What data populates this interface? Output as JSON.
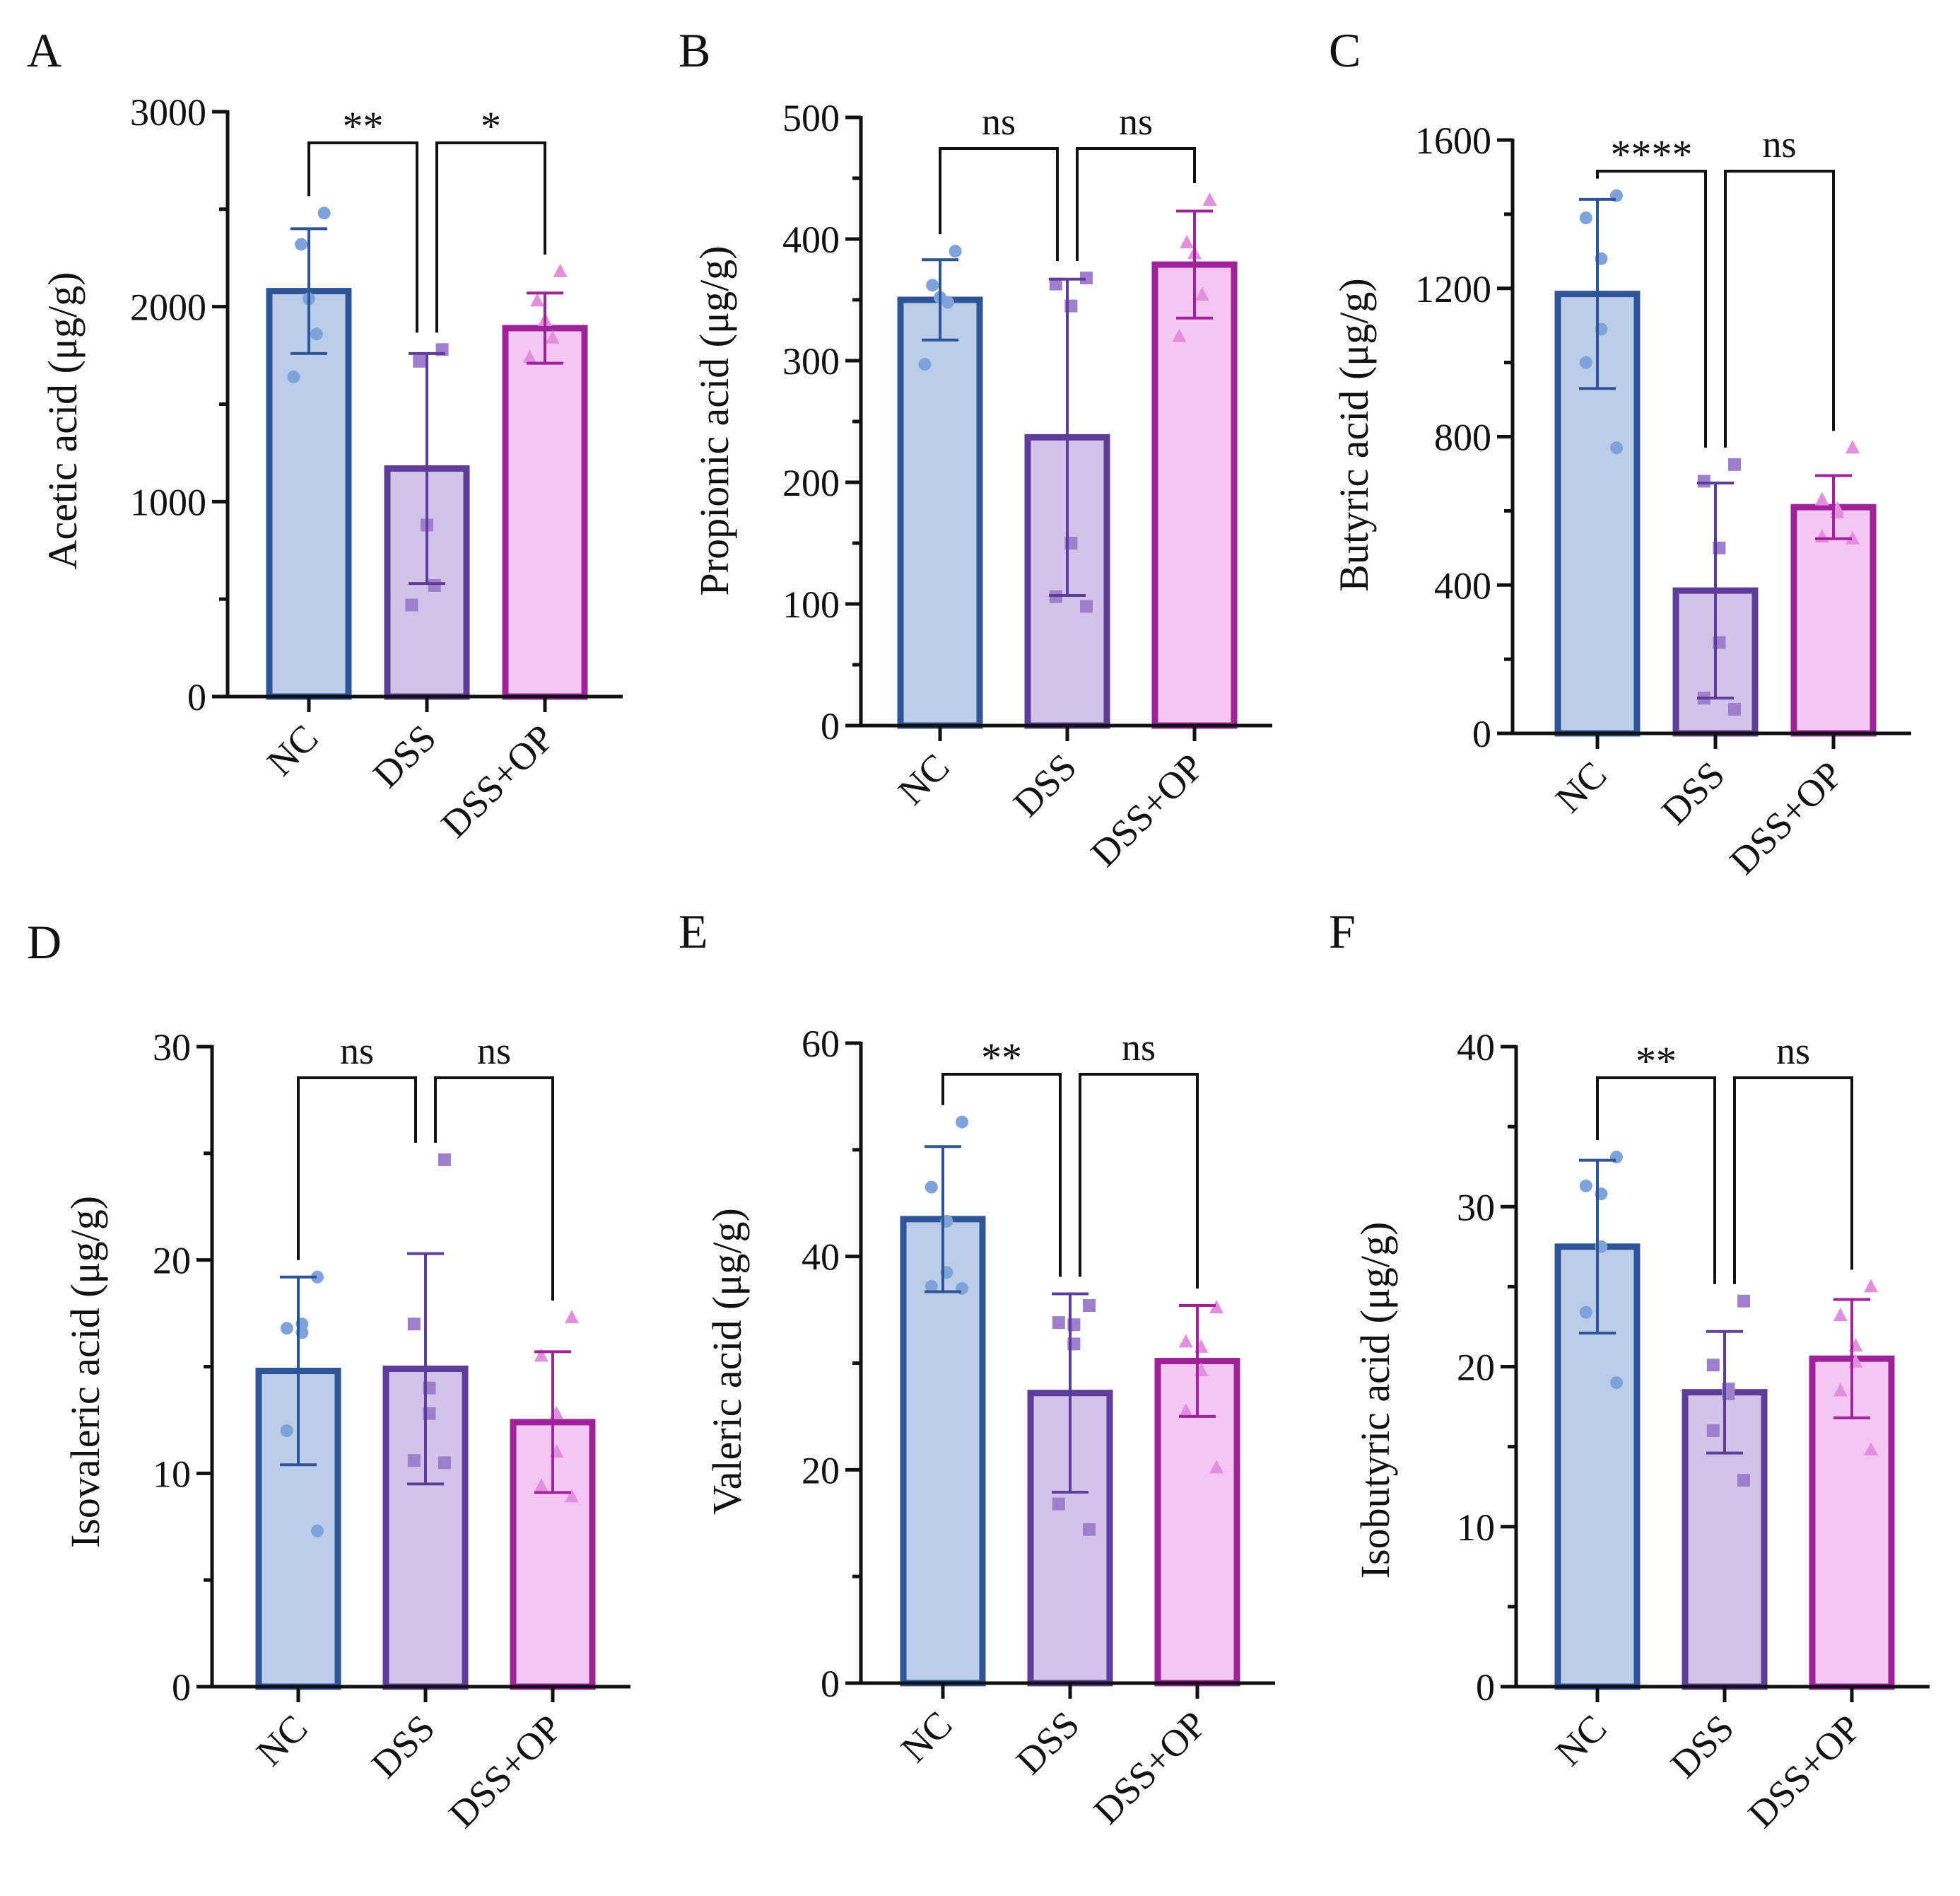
{
  "colors": {
    "nc_fill": "#bccde9",
    "nc_stroke": "#2e5597",
    "nc_point": "#7ea3db",
    "dss_fill": "#d2c4e8",
    "dss_stroke": "#5e3c9a",
    "dss_point": "#9d7fce",
    "op_fill": "#f4c6f1",
    "op_stroke": "#a0229a",
    "op_point": "#e48ee0",
    "axis": "#111111"
  },
  "chart_data": [
    {
      "panel": "A",
      "type": "bar",
      "ylabel": "Acetic acid (μg/g)",
      "ylim": [
        0,
        3000
      ],
      "ticks": [
        "0",
        "1000",
        "2000",
        "3000"
      ],
      "tick_values": [
        0,
        1000,
        2000,
        3000
      ],
      "categories": [
        "NC",
        "DSS",
        "DSS+OP"
      ],
      "values": [
        2080,
        1170,
        1890
      ],
      "errors": [
        320,
        590,
        180
      ],
      "points": [
        [
          2480,
          2320,
          2040,
          1860,
          1640
        ],
        [
          1780,
          1720,
          880,
          570,
          470
        ],
        [
          2180,
          2030,
          1930,
          1840,
          1740
        ]
      ],
      "significance": [
        "**",
        "*"
      ]
    },
    {
      "panel": "B",
      "type": "bar",
      "ylabel": "Propionic acid (μg/g)",
      "ylim": [
        0,
        500
      ],
      "ticks": [
        "0",
        "100",
        "200",
        "300",
        "400",
        "500"
      ],
      "tick_values": [
        0,
        100,
        200,
        300,
        400,
        500
      ],
      "categories": [
        "NC",
        "DSS",
        "DSS+OP"
      ],
      "values": [
        350,
        237,
        379
      ],
      "errors": [
        33,
        130,
        44
      ],
      "points": [
        [
          390,
          362,
          352,
          348,
          297
        ],
        [
          368,
          363,
          345,
          150,
          106,
          98
        ],
        [
          432,
          397,
          388,
          354,
          320
        ]
      ],
      "significance": [
        "ns",
        "ns"
      ]
    },
    {
      "panel": "C",
      "type": "bar",
      "ylabel": "Butyric acid (μg/g)",
      "ylim": [
        0,
        1600
      ],
      "ticks": [
        "0",
        "400",
        "800",
        "1200",
        "1600"
      ],
      "tick_values": [
        0,
        400,
        800,
        1200,
        1600
      ],
      "categories": [
        "NC",
        "DSS",
        "DSS+OP"
      ],
      "values": [
        1185,
        385,
        610
      ],
      "errors": [
        255,
        290,
        85
      ],
      "points": [
        [
          1450,
          1390,
          1280,
          1090,
          1000,
          770
        ],
        [
          725,
          680,
          500,
          245,
          95,
          65
        ],
        [
          770,
          630,
          605,
          595,
          530,
          525
        ]
      ],
      "significance": [
        "****",
        "ns"
      ]
    },
    {
      "panel": "D",
      "type": "bar",
      "ylabel": "Isovaleric acid (μg/g)",
      "ylim": [
        0,
        30
      ],
      "ticks": [
        "0",
        "10",
        "20",
        "30"
      ],
      "tick_values": [
        0,
        10,
        20,
        30
      ],
      "categories": [
        "NC",
        "DSS",
        "DSS+OP"
      ],
      "values": [
        14.8,
        14.9,
        12.4
      ],
      "errors": [
        4.4,
        5.4,
        3.3
      ],
      "points": [
        [
          19.2,
          16.8,
          17.0,
          16.6,
          12.0,
          7.3
        ],
        [
          24.7,
          17.0,
          14.0,
          12.8,
          10.6,
          10.5
        ],
        [
          17.3,
          15.5,
          12.8,
          11.0,
          9.4,
          8.9
        ]
      ],
      "significance": [
        "ns",
        "ns"
      ]
    },
    {
      "panel": "E",
      "type": "bar",
      "ylabel": "Valeric acid (μg/g)",
      "ylim": [
        0,
        60
      ],
      "ticks": [
        "0",
        "20",
        "40",
        "60"
      ],
      "tick_values": [
        0,
        20,
        40,
        60
      ],
      "categories": [
        "NC",
        "DSS",
        "DSS+OP"
      ],
      "values": [
        43.5,
        27.2,
        30.2
      ],
      "errors": [
        6.8,
        9.3,
        5.2
      ],
      "points": [
        [
          52.6,
          46.5,
          43.3,
          38.5,
          37.2,
          37.0
        ],
        [
          35.4,
          33.8,
          33.6,
          31.8,
          16.8,
          14.4
        ],
        [
          35.2,
          32.0,
          31.5,
          29.3,
          25.5,
          20.2
        ]
      ],
      "significance": [
        "**",
        "ns"
      ]
    },
    {
      "panel": "F",
      "type": "bar",
      "ylabel": "Isobutyric acid (μg/g)",
      "ylim": [
        0,
        40
      ],
      "ticks": [
        "0",
        "10",
        "20",
        "30",
        "40"
      ],
      "tick_values": [
        0,
        10,
        20,
        30,
        40
      ],
      "categories": [
        "NC",
        "DSS",
        "DSS+OP"
      ],
      "values": [
        27.5,
        18.4,
        20.5
      ],
      "errors": [
        5.4,
        3.8,
        3.7
      ],
      "points": [
        [
          33.1,
          31.3,
          30.8,
          27.5,
          23.4,
          19.0
        ],
        [
          24.1,
          20.1,
          18.6,
          18.3,
          16.0,
          12.9
        ],
        [
          25.0,
          23.2,
          21.3,
          20.3,
          18.5,
          14.8
        ]
      ],
      "significance": [
        "**",
        "ns"
      ]
    }
  ]
}
